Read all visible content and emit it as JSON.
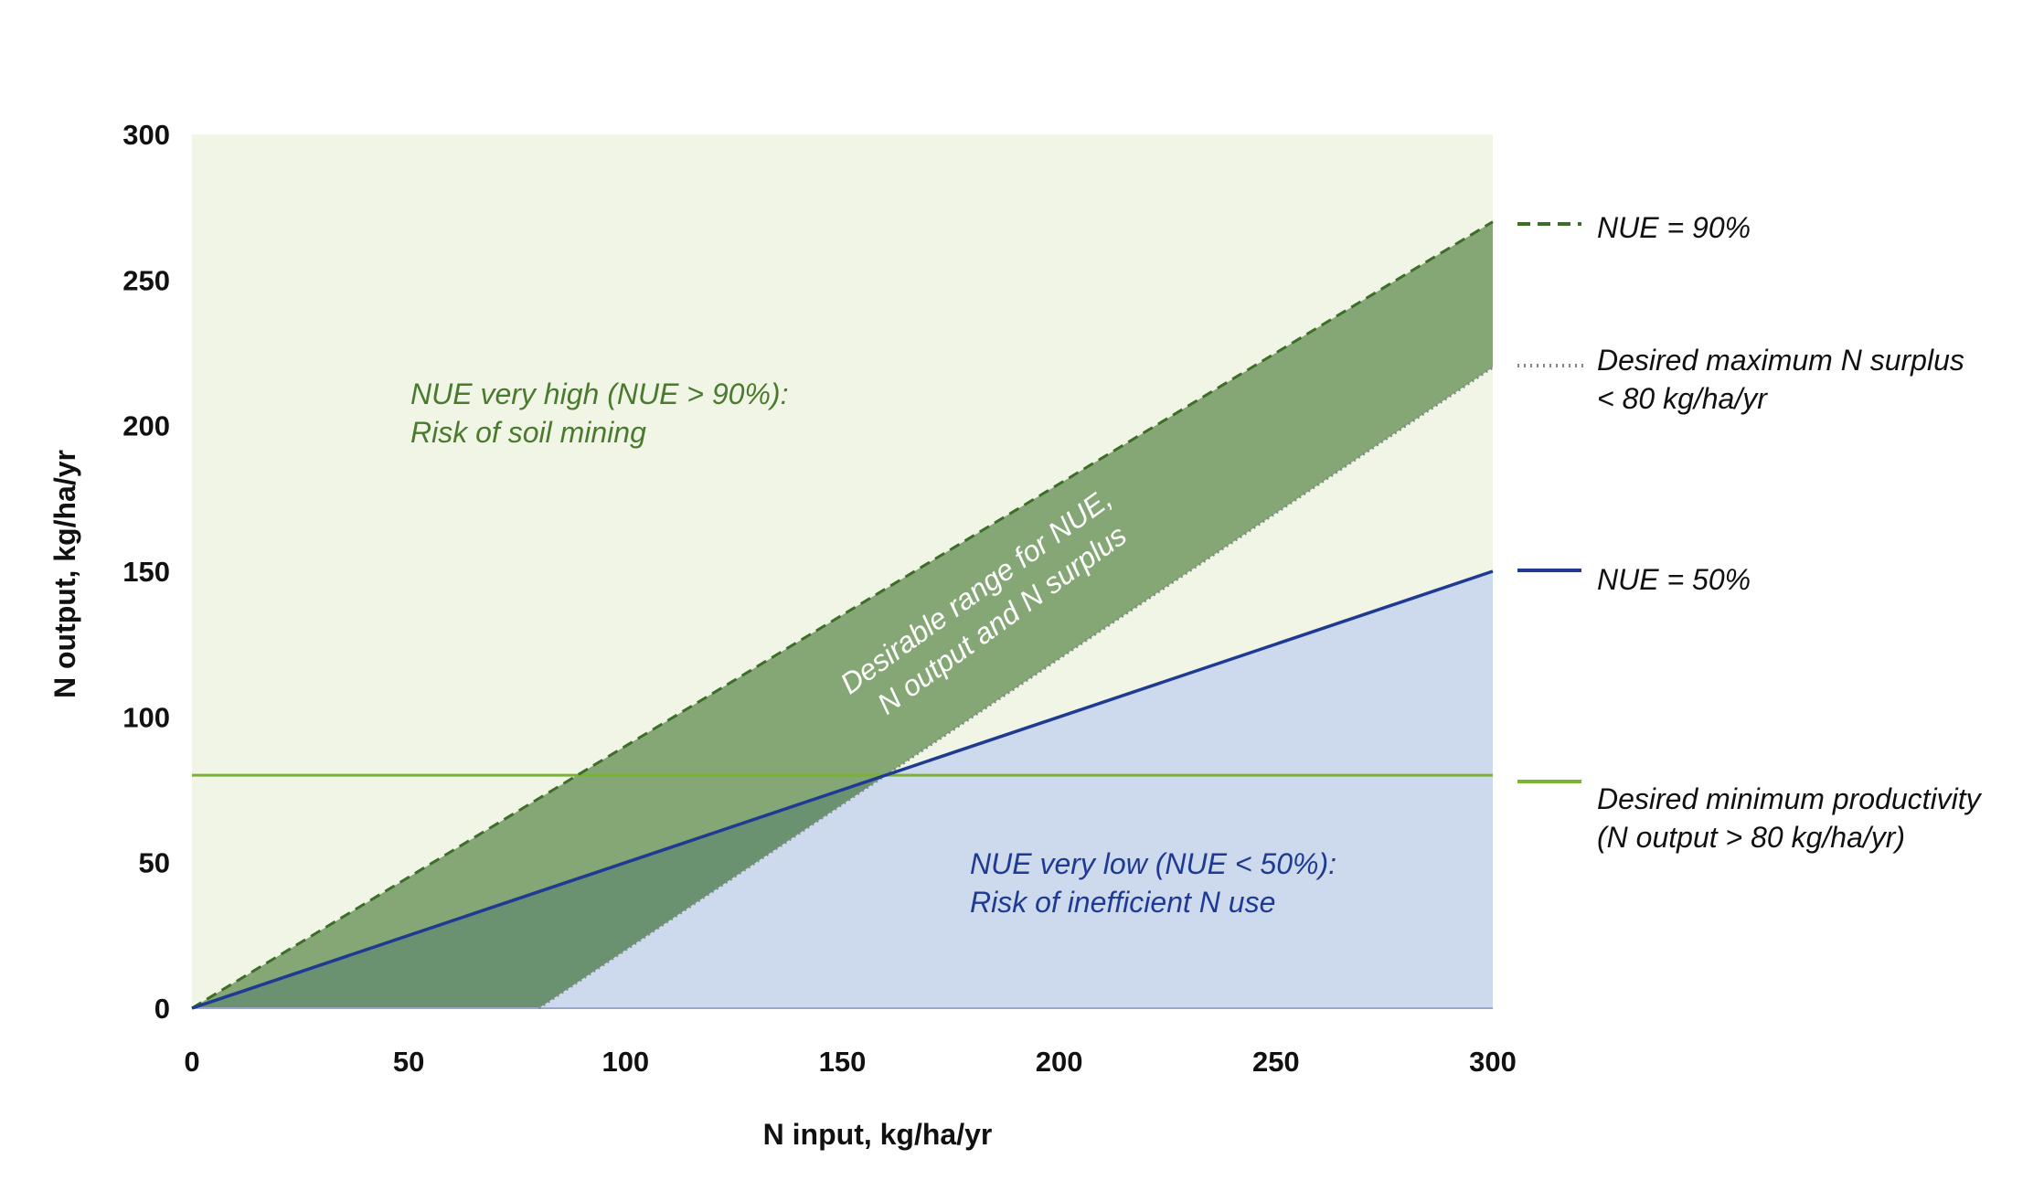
{
  "chart_data": {
    "type": "area",
    "xlabel": "N input, kg/ha/yr",
    "ylabel": "N output, kg/ha/yr",
    "xlim": [
      0,
      300
    ],
    "ylim": [
      0,
      300
    ],
    "xticks": [
      "0",
      "50",
      "100",
      "150",
      "200",
      "250",
      "300"
    ],
    "yticks": [
      "0",
      "50",
      "100",
      "150",
      "200",
      "250",
      "300"
    ],
    "grid": false,
    "legend_position": "right",
    "series": [
      {
        "name": "NUE = 90%",
        "style": "dashed",
        "color": "#3d6e28",
        "x": [
          0,
          300
        ],
        "y": [
          0,
          270
        ]
      },
      {
        "name": "Desired maximum N surplus < 80 kg/ha/yr",
        "style": "dotted",
        "color": "#7d8a84",
        "x": [
          80,
          300
        ],
        "y": [
          0,
          220
        ]
      },
      {
        "name": "NUE = 50%",
        "style": "solid",
        "color": "#1f3a93",
        "x": [
          0,
          300
        ],
        "y": [
          0,
          150
        ]
      },
      {
        "name": "Desired minimum productivity (N output > 80 kg/ha/yr)",
        "style": "solid",
        "color": "#7ab32e",
        "x": [
          0,
          300
        ],
        "y": [
          80,
          80
        ]
      }
    ],
    "legend": [
      {
        "line1": "NUE = 90%",
        "line2": "",
        "style": "dashed",
        "color": "#3d6e28"
      },
      {
        "line1": "Desired maximum N surplus",
        "line2": "< 80 kg/ha/yr",
        "style": "dotted",
        "color": "#7d8a84"
      },
      {
        "line1": "NUE = 50%",
        "line2": "",
        "style": "solid",
        "color": "#1f3a93"
      },
      {
        "line1": "Desired minimum productivity",
        "line2": "(N output > 80 kg/ha/yr)",
        "style": "solid",
        "color": "#7ab32e"
      }
    ],
    "annotations": {
      "high": {
        "line1": "NUE very high (NUE > 90%):",
        "line2": "Risk of soil mining"
      },
      "low": {
        "line1": "NUE very low (NUE < 50%):",
        "line2": "Risk of inefficient N use"
      },
      "desirable": {
        "line1": "Desirable range for NUE,",
        "line2": "N output and N surplus"
      }
    },
    "colors": {
      "high_region": "#f1f5e6",
      "desirable_band": "#85a775",
      "band_overlap": "#6a9270",
      "low_region": "#cdd9ed",
      "nue90": "#3d6e28",
      "surplus": "#7d8a84",
      "nue50": "#1f3a93",
      "min_productivity": "#7ab32e"
    }
  }
}
